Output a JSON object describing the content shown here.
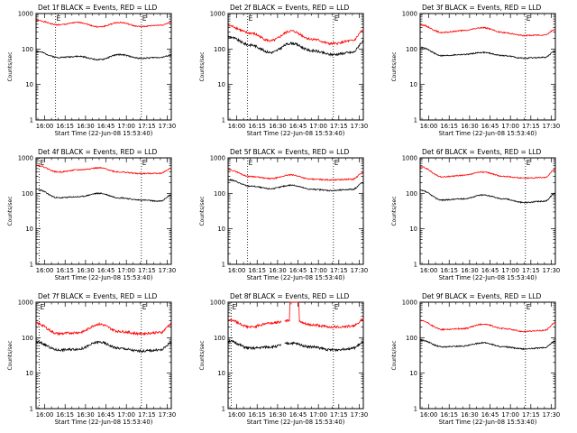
{
  "chart_data": [
    {
      "type": "line",
      "title": "Det 1f BLACK = Events, RED = LLD",
      "xlabel": "Start Time (22-Jun-08 15:53:40)",
      "ylabel": "Counts/sec",
      "xticks": [
        "16:00",
        "16:15",
        "16:30",
        "16:45",
        "17:00",
        "17:15",
        "17:30"
      ],
      "xlim": [
        "15:53:40",
        "17:33:00"
      ],
      "yscale": "log",
      "ylim": [
        1,
        1000
      ],
      "yticks": [
        "1",
        "10",
        "100",
        "1000"
      ],
      "markers": [
        "E",
        "E"
      ],
      "marker_times": [
        "16:08",
        "17:11"
      ],
      "series": [
        {
          "color": "#ff0000",
          "name": "LLD",
          "times": [
            "15:54",
            "16:10",
            "16:25",
            "16:40",
            "16:55",
            "17:10",
            "17:25",
            "17:33"
          ],
          "values": [
            640,
            480,
            560,
            420,
            560,
            430,
            470,
            560
          ]
        },
        {
          "color": "#000000",
          "name": "Events",
          "times": [
            "15:54",
            "16:10",
            "16:25",
            "16:40",
            "16:55",
            "17:10",
            "17:25",
            "17:33"
          ],
          "values": [
            85,
            58,
            62,
            50,
            70,
            55,
            58,
            66
          ]
        }
      ]
    },
    {
      "type": "line",
      "title": "Det 2f BLACK = Events, RED = LLD",
      "xlabel": "Start Time (22-Jun-08 15:53:40)",
      "ylabel": "Counts/sec",
      "xticks": [
        "16:00",
        "16:15",
        "16:30",
        "16:45",
        "17:00",
        "17:15",
        "17:30"
      ],
      "xlim": [
        "15:53:40",
        "17:33:00"
      ],
      "yscale": "log",
      "ylim": [
        1,
        1000
      ],
      "yticks": [
        "1",
        "10",
        "100",
        "1000"
      ],
      "markers": [
        "E",
        "E"
      ],
      "marker_times": [
        "16:08",
        "17:11"
      ],
      "series": [
        {
          "color": "#ff0000",
          "name": "LLD",
          "times": [
            "15:54",
            "16:10",
            "16:25",
            "16:40",
            "16:55",
            "17:10",
            "17:25",
            "17:33"
          ],
          "values": [
            450,
            280,
            170,
            320,
            190,
            140,
            170,
            330
          ]
        },
        {
          "color": "#000000",
          "name": "Events",
          "times": [
            "15:54",
            "16:10",
            "16:25",
            "16:40",
            "16:55",
            "17:10",
            "17:25",
            "17:33"
          ],
          "values": [
            220,
            130,
            80,
            145,
            90,
            70,
            80,
            160
          ]
        }
      ]
    },
    {
      "type": "line",
      "title": "Det 3f BLACK = Events, RED = LLD",
      "xlabel": "Start Time (22-Jun-08 15:53:40)",
      "ylabel": "Counts/sec",
      "xticks": [
        "16:00",
        "16:15",
        "16:30",
        "16:45",
        "17:00",
        "17:15",
        "17:30"
      ],
      "xlim": [
        "15:53:40",
        "17:33:00"
      ],
      "yscale": "log",
      "ylim": [
        1,
        1000
      ],
      "yticks": [
        "1",
        "10",
        "100",
        "1000"
      ],
      "markers": [
        "E"
      ],
      "marker_times": [
        "17:11"
      ],
      "series": [
        {
          "color": "#ff0000",
          "name": "LLD",
          "times": [
            "15:54",
            "16:10",
            "16:25",
            "16:40",
            "16:55",
            "17:10",
            "17:25",
            "17:33"
          ],
          "values": [
            480,
            290,
            330,
            400,
            290,
            240,
            250,
            350
          ]
        },
        {
          "color": "#000000",
          "name": "Events",
          "times": [
            "15:54",
            "16:10",
            "16:25",
            "16:40",
            "16:55",
            "17:10",
            "17:25",
            "17:33"
          ],
          "values": [
            110,
            65,
            70,
            80,
            65,
            55,
            58,
            85
          ]
        }
      ]
    },
    {
      "type": "line",
      "title": "Det 4f BLACK = Events, RED = LLD",
      "xlabel": "Start Time (22-Jun-08 15:53:40)",
      "ylabel": "Counts/sec",
      "xticks": [
        "16:00",
        "16:15",
        "16:30",
        "16:45",
        "17:00",
        "17:15",
        "17:30"
      ],
      "xlim": [
        "15:53:40",
        "17:33:00"
      ],
      "yscale": "log",
      "ylim": [
        1,
        1000
      ],
      "yticks": [
        "1",
        "10",
        "100",
        "1000"
      ],
      "markers": [
        "E",
        "E"
      ],
      "marker_times": [
        "15:56",
        "17:11"
      ],
      "series": [
        {
          "color": "#ff0000",
          "name": "LLD",
          "times": [
            "15:54",
            "16:10",
            "16:25",
            "16:40",
            "16:55",
            "17:10",
            "17:25",
            "17:33"
          ],
          "values": [
            620,
            400,
            460,
            520,
            400,
            360,
            370,
            500
          ]
        },
        {
          "color": "#000000",
          "name": "Events",
          "times": [
            "15:54",
            "16:10",
            "16:25",
            "16:40",
            "16:55",
            "17:10",
            "17:25",
            "17:33"
          ],
          "values": [
            130,
            75,
            80,
            100,
            75,
            65,
            60,
            90
          ]
        }
      ]
    },
    {
      "type": "line",
      "title": "Det 5f BLACK = Events, RED = LLD",
      "xlabel": "Start Time (22-Jun-08 15:53:40)",
      "ylabel": "Counts/sec",
      "xticks": [
        "16:00",
        "16:15",
        "16:30",
        "16:45",
        "17:00",
        "17:15",
        "17:30"
      ],
      "xlim": [
        "15:53:40",
        "17:33:00"
      ],
      "yscale": "log",
      "ylim": [
        1,
        1000
      ],
      "yticks": [
        "1",
        "10",
        "100",
        "1000"
      ],
      "markers": [
        "E",
        "E"
      ],
      "marker_times": [
        "16:08",
        "17:11"
      ],
      "series": [
        {
          "color": "#ff0000",
          "name": "LLD",
          "times": [
            "15:54",
            "16:10",
            "16:25",
            "16:40",
            "16:55",
            "17:10",
            "17:25",
            "17:33"
          ],
          "values": [
            460,
            300,
            260,
            330,
            250,
            240,
            250,
            380
          ]
        },
        {
          "color": "#000000",
          "name": "Events",
          "times": [
            "15:54",
            "16:10",
            "16:25",
            "16:40",
            "16:55",
            "17:10",
            "17:25",
            "17:33"
          ],
          "values": [
            240,
            160,
            135,
            170,
            130,
            120,
            130,
            200
          ]
        }
      ]
    },
    {
      "type": "line",
      "title": "Det 6f BLACK = Events, RED = LLD",
      "xlabel": "Start Time (22-Jun-08 15:53:40)",
      "ylabel": "Counts/sec",
      "xticks": [
        "16:00",
        "16:15",
        "16:30",
        "16:45",
        "17:00",
        "17:15",
        "17:30"
      ],
      "xlim": [
        "15:53:40",
        "17:33:00"
      ],
      "yscale": "log",
      "ylim": [
        1,
        1000
      ],
      "yticks": [
        "1",
        "10",
        "100",
        "1000"
      ],
      "markers": [
        "E"
      ],
      "marker_times": [
        "17:11"
      ],
      "series": [
        {
          "color": "#ff0000",
          "name": "LLD",
          "times": [
            "15:54",
            "16:10",
            "16:25",
            "16:40",
            "16:55",
            "17:10",
            "17:25",
            "17:33"
          ],
          "values": [
            560,
            290,
            320,
            400,
            300,
            270,
            280,
            470
          ]
        },
        {
          "color": "#000000",
          "name": "Events",
          "times": [
            "15:54",
            "16:10",
            "16:25",
            "16:40",
            "16:55",
            "17:10",
            "17:25",
            "17:33"
          ],
          "values": [
            120,
            65,
            70,
            90,
            70,
            55,
            60,
            100
          ]
        }
      ]
    },
    {
      "type": "line",
      "title": "Det 7f BLACK = Events, RED = LLD",
      "xlabel": "Start Time (22-Jun-08 15:53:40)",
      "ylabel": "Counts/sec",
      "xticks": [
        "16:00",
        "16:15",
        "16:30",
        "16:45",
        "17:00",
        "17:15",
        "17:30"
      ],
      "xlim": [
        "15:53:40",
        "17:33:00"
      ],
      "yscale": "log",
      "ylim": [
        1,
        1000
      ],
      "yticks": [
        "1",
        "10",
        "100",
        "1000"
      ],
      "markers": [
        "E",
        "E"
      ],
      "marker_times": [
        "15:56",
        "17:11"
      ],
      "series": [
        {
          "color": "#ff0000",
          "name": "LLD",
          "times": [
            "15:54",
            "16:10",
            "16:25",
            "16:40",
            "16:55",
            "17:10",
            "17:25",
            "17:33"
          ],
          "values": [
            250,
            130,
            140,
            240,
            150,
            130,
            140,
            240
          ]
        },
        {
          "color": "#000000",
          "name": "Events",
          "times": [
            "15:54",
            "16:10",
            "16:25",
            "16:40",
            "16:55",
            "17:10",
            "17:25",
            "17:33"
          ],
          "values": [
            75,
            45,
            48,
            75,
            50,
            42,
            45,
            72
          ]
        }
      ]
    },
    {
      "type": "line",
      "title": "Det 8f BLACK = Events, RED = LLD",
      "xlabel": "Start Time (22-Jun-08 15:53:40)",
      "ylabel": "Counts/sec",
      "xticks": [
        "16:00",
        "16:15",
        "16:30",
        "16:45",
        "17:00",
        "17:15",
        "17:30"
      ],
      "xlim": [
        "15:53:40",
        "17:33:00"
      ],
      "yscale": "log",
      "ylim": [
        1,
        1000
      ],
      "yticks": [
        "1",
        "10",
        "100",
        "1000"
      ],
      "markers": [
        "E",
        "E"
      ],
      "marker_times": [
        "15:56",
        "17:11"
      ],
      "gap": [
        "16:33",
        "16:35"
      ],
      "spike": {
        "start": "16:39",
        "end": "16:46",
        "value": 1000
      },
      "series": [
        {
          "color": "#ff0000",
          "name": "LLD",
          "times": [
            "15:54",
            "16:10",
            "16:25",
            "16:40",
            "16:55",
            "17:10",
            "17:25",
            "17:33"
          ],
          "values": [
            320,
            200,
            260,
            310,
            230,
            200,
            210,
            320
          ]
        },
        {
          "color": "#000000",
          "name": "Events",
          "times": [
            "15:54",
            "16:10",
            "16:25",
            "16:40",
            "16:55",
            "17:10",
            "17:25",
            "17:33"
          ],
          "values": [
            80,
            50,
            55,
            70,
            55,
            45,
            50,
            72
          ]
        }
      ]
    },
    {
      "type": "line",
      "title": "Det 9f BLACK = Events, RED = LLD",
      "xlabel": "Start Time (22-Jun-08 15:53:40)",
      "ylabel": "Counts/sec",
      "xticks": [
        "16:00",
        "16:15",
        "16:30",
        "16:45",
        "17:00",
        "17:15",
        "17:30"
      ],
      "xlim": [
        "15:53:40",
        "17:33:00"
      ],
      "yscale": "log",
      "ylim": [
        1,
        1000
      ],
      "yticks": [
        "1",
        "10",
        "100",
        "1000"
      ],
      "markers": [
        "E"
      ],
      "marker_times": [
        "17:11"
      ],
      "series": [
        {
          "color": "#ff0000",
          "name": "LLD",
          "times": [
            "15:54",
            "16:10",
            "16:25",
            "16:40",
            "16:55",
            "17:10",
            "17:25",
            "17:33"
          ],
          "values": [
            300,
            170,
            180,
            240,
            180,
            150,
            160,
            260
          ]
        },
        {
          "color": "#000000",
          "name": "Events",
          "times": [
            "15:54",
            "16:10",
            "16:25",
            "16:40",
            "16:55",
            "17:10",
            "17:25",
            "17:33"
          ],
          "values": [
            85,
            55,
            58,
            72,
            55,
            48,
            52,
            80
          ]
        }
      ]
    }
  ]
}
